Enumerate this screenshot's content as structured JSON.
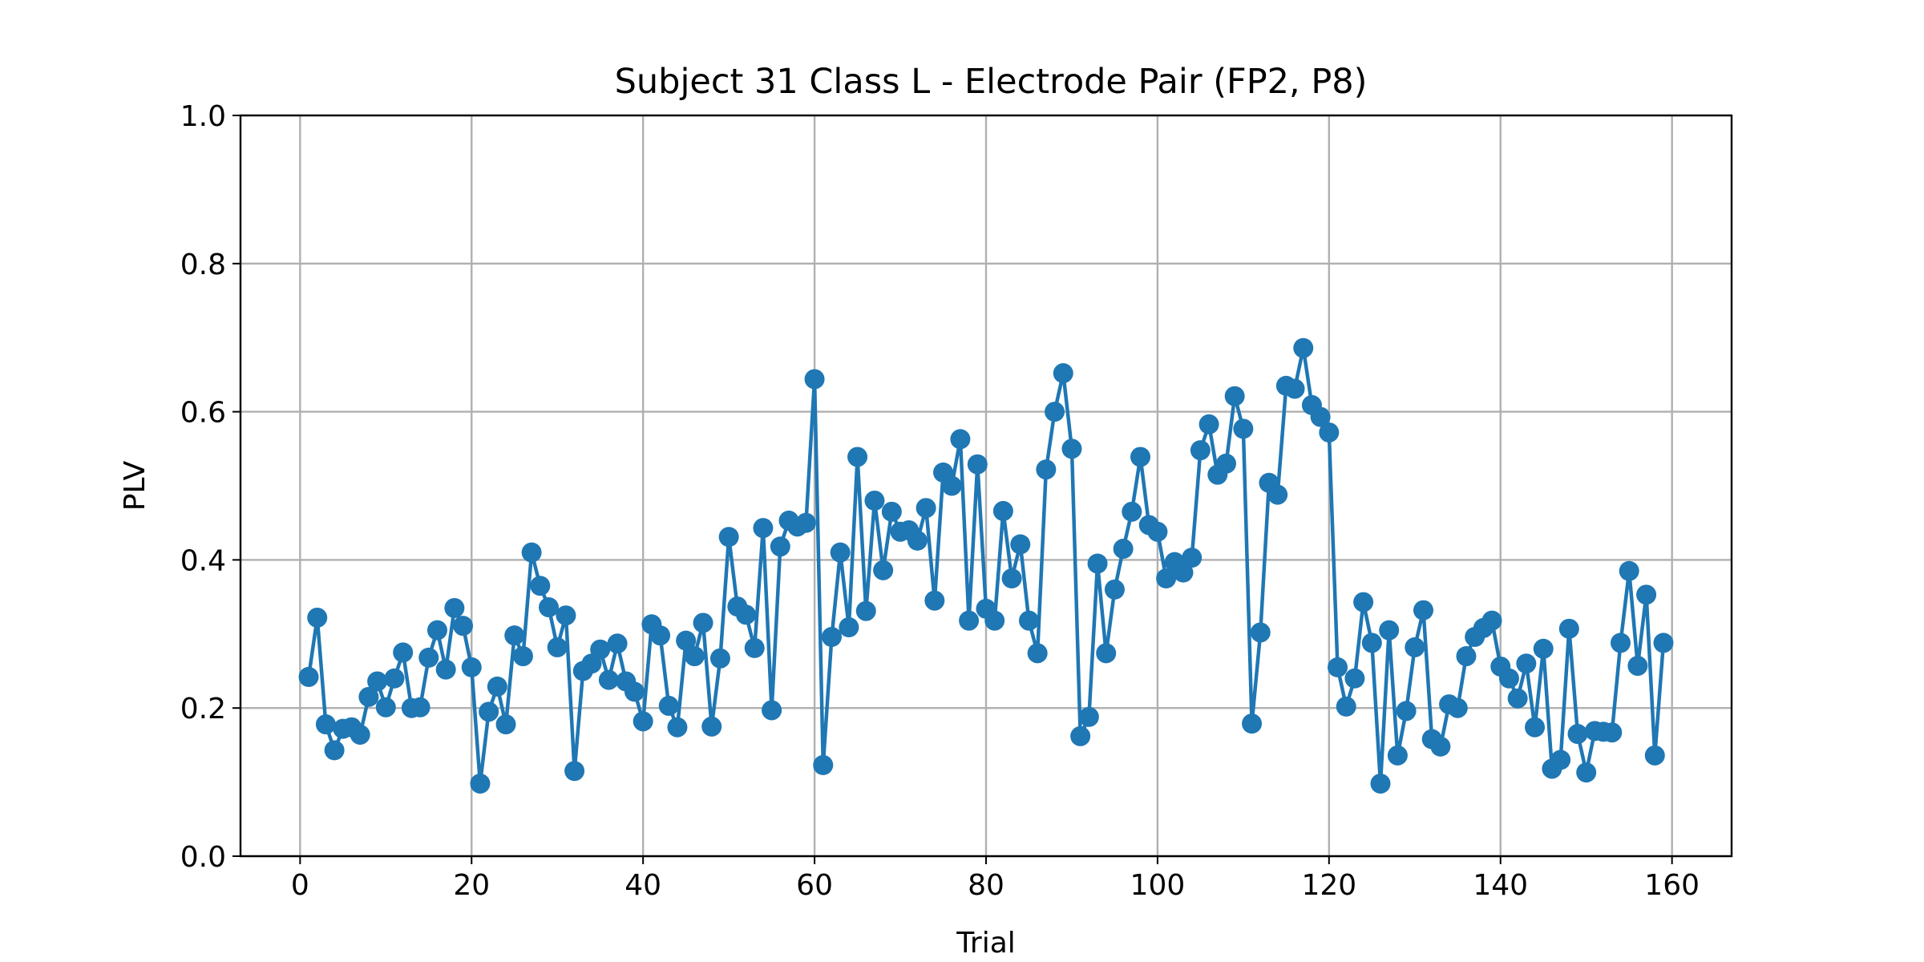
{
  "chart_data": {
    "type": "line",
    "title": "Subject 31 Class L - Electrode Pair (FP2, P8)",
    "xlabel": "Trial",
    "ylabel": "PLV",
    "xlim": [
      -6.95,
      166.95
    ],
    "ylim": [
      0.0,
      1.0
    ],
    "xticks": [
      0,
      20,
      40,
      60,
      80,
      100,
      120,
      140,
      160
    ],
    "yticks": [
      0.0,
      0.2,
      0.4,
      0.6,
      0.8,
      1.0
    ],
    "ytick_labels": [
      "0.0",
      "0.2",
      "0.4",
      "0.6",
      "0.8",
      "1.0"
    ],
    "grid": true,
    "legend": "none",
    "marker": "circle",
    "color": "#1f77b4",
    "x_start": 1,
    "x_end": 159,
    "series": [
      {
        "values": [
          0.242,
          0.322,
          0.178,
          0.143,
          0.172,
          0.174,
          0.164,
          0.215,
          0.236,
          0.201,
          0.24,
          0.275,
          0.2,
          0.201,
          0.268,
          0.305,
          0.252,
          0.335,
          0.311,
          0.255,
          0.098,
          0.195,
          0.229,
          0.178,
          0.298,
          0.27,
          0.41,
          0.365,
          0.336,
          0.282,
          0.325,
          0.115,
          0.25,
          0.26,
          0.279,
          0.238,
          0.287,
          0.236,
          0.222,
          0.182,
          0.313,
          0.298,
          0.203,
          0.174,
          0.291,
          0.27,
          0.315,
          0.175,
          0.267,
          0.431,
          0.337,
          0.326,
          0.281,
          0.443,
          0.197,
          0.418,
          0.453,
          0.445,
          0.45,
          0.644,
          0.123,
          0.296,
          0.41,
          0.309,
          0.539,
          0.331,
          0.48,
          0.386,
          0.465,
          0.438,
          0.44,
          0.426,
          0.47,
          0.345,
          0.518,
          0.5,
          0.563,
          0.318,
          0.529,
          0.334,
          0.318,
          0.466,
          0.375,
          0.421,
          0.318,
          0.274,
          0.522,
          0.6,
          0.652,
          0.55,
          0.162,
          0.188,
          0.395,
          0.274,
          0.36,
          0.415,
          0.465,
          0.539,
          0.447,
          0.438,
          0.375,
          0.397,
          0.383,
          0.403,
          0.548,
          0.583,
          0.515,
          0.53,
          0.621,
          0.577,
          0.179,
          0.302,
          0.504,
          0.488,
          0.635,
          0.631,
          0.686,
          0.609,
          0.593,
          0.572,
          0.255,
          0.202,
          0.24,
          0.343,
          0.288,
          0.098,
          0.305,
          0.136,
          0.196,
          0.282,
          0.332,
          0.158,
          0.148,
          0.205,
          0.2,
          0.27,
          0.296,
          0.308,
          0.318,
          0.256,
          0.24,
          0.213,
          0.26,
          0.174,
          0.28,
          0.118,
          0.13,
          0.307,
          0.165,
          0.113,
          0.169,
          0.168,
          0.167,
          0.288,
          0.385,
          0.257,
          0.353,
          0.136,
          0.288
        ]
      }
    ]
  }
}
